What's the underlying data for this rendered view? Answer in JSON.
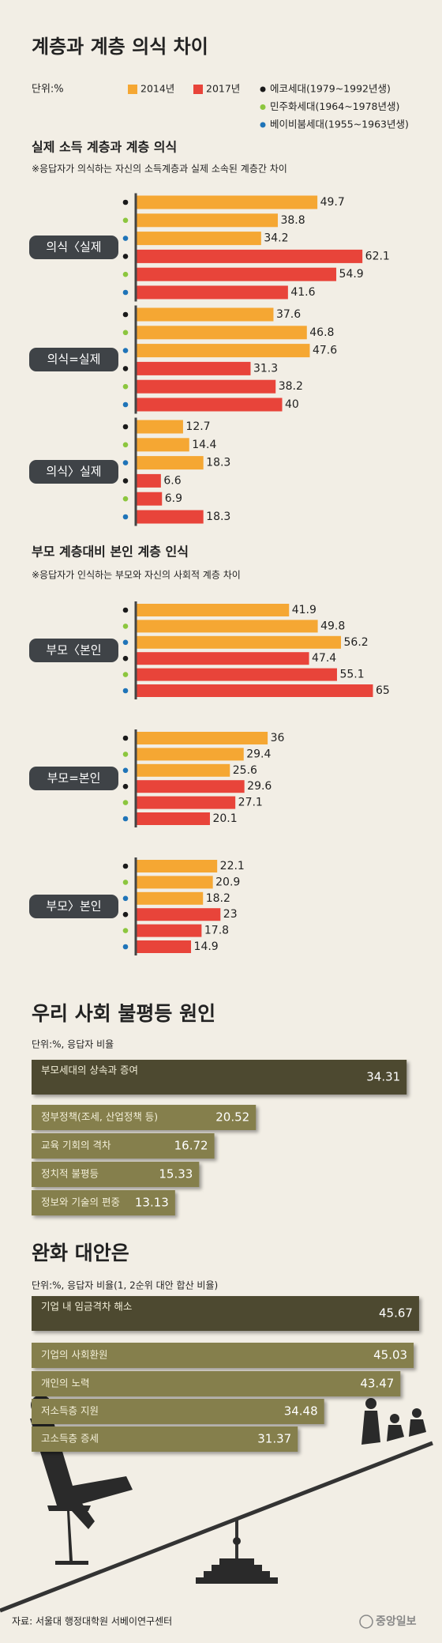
{
  "title": "계층과 계층 의식 차이",
  "unit": "단위:%",
  "legend": {
    "years": [
      {
        "name": "2014년",
        "color": "#f5a733"
      },
      {
        "name": "2017년",
        "color": "#e8443a"
      }
    ],
    "generations": [
      {
        "name": "에코세대(1979~1992년생)",
        "color": "#1a1a1a"
      },
      {
        "name": "민주화세대(1964~1978년생)",
        "color": "#8cc63e"
      },
      {
        "name": "베이비붐세대(1955~1963년생)",
        "color": "#1f74b8"
      }
    ]
  },
  "chart_data": [
    {
      "type": "bar",
      "title": "실제 소득 계층과 계층 의식",
      "note": "※응답자가 의식하는 자신의 소득계층과 실제 소속된 계층간 차이",
      "categories": [
        "의식〈실제",
        "의식=실제",
        "의식〉실제"
      ],
      "series": [
        {
          "color": "#f5a733",
          "dot": "#1a1a1a",
          "values": [
            49.7,
            37.6,
            12.7
          ]
        },
        {
          "color": "#f5a733",
          "dot": "#8cc63e",
          "values": [
            38.8,
            46.8,
            14.4
          ]
        },
        {
          "color": "#f5a733",
          "dot": "#1f74b8",
          "values": [
            34.2,
            47.6,
            18.3
          ]
        },
        {
          "color": "#e8443a",
          "dot": "#1a1a1a",
          "values": [
            62.1,
            31.3,
            6.6
          ]
        },
        {
          "color": "#e8443a",
          "dot": "#8cc63e",
          "values": [
            54.9,
            38.2,
            6.9
          ]
        },
        {
          "color": "#e8443a",
          "dot": "#1f74b8",
          "values": [
            41.6,
            40,
            18.3
          ]
        }
      ]
    },
    {
      "type": "bar",
      "title": "부모 계층대비 본인 계층 인식",
      "note": "※응답자가 인식하는 부모와 자신의 사회적 계층 차이",
      "categories": [
        "부모〈본인",
        "부모=본인",
        "부모〉본인"
      ],
      "series": [
        {
          "color": "#f5a733",
          "dot": "#1a1a1a",
          "values": [
            41.9,
            36,
            22.1
          ]
        },
        {
          "color": "#f5a733",
          "dot": "#8cc63e",
          "values": [
            49.8,
            29.4,
            20.9
          ]
        },
        {
          "color": "#f5a733",
          "dot": "#1f74b8",
          "values": [
            56.2,
            25.6,
            18.2
          ]
        },
        {
          "color": "#e8443a",
          "dot": "#1a1a1a",
          "values": [
            47.4,
            29.6,
            23
          ]
        },
        {
          "color": "#e8443a",
          "dot": "#8cc63e",
          "values": [
            55.1,
            27.1,
            17.8
          ]
        },
        {
          "color": "#e8443a",
          "dot": "#1f74b8",
          "values": [
            65,
            20.1,
            14.9
          ]
        }
      ]
    },
    {
      "type": "bar",
      "title": "우리 사회 불평등 원인",
      "note": "단위:%, 응답자 비율",
      "categories": [
        "부모세대의 상속과 증여",
        "정부정책(조세, 산업정책 등)",
        "교육 기회의 격차",
        "정치적 불평등",
        "정보와 기술의 편중"
      ],
      "values": [
        34.31,
        20.52,
        16.72,
        15.33,
        13.13
      ],
      "color": "#857f4c",
      "highlight_color": "#4d4930"
    },
    {
      "type": "bar",
      "title": "완화 대안은",
      "note": "단위:%, 응답자 비율(1, 2순위 대안 합산 비율)",
      "categories": [
        "기업 내 임금격차 해소",
        "기업의 사회환원",
        "개인의 노력",
        "저소득층 지원",
        "고소득층 증세"
      ],
      "values": [
        45.67,
        45.03,
        43.47,
        34.48,
        31.37
      ],
      "color": "#857f4c",
      "highlight_color": "#4d4930"
    }
  ],
  "source": "자료: 서울대 행정대학원 서베이연구센터",
  "logo": "중앙일보"
}
